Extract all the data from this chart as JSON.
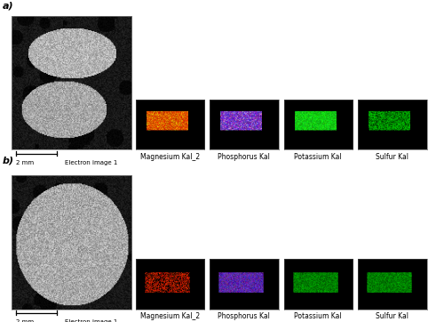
{
  "panel_a_label": "a)",
  "panel_b_label": "b)",
  "element_labels_a": [
    "Magnesium Kal_2",
    "Phosphorus Kal",
    "Potassium Kal",
    "Sulfur Kal"
  ],
  "element_labels_b": [
    "Magnesium Kal_2",
    "Phosphorus Kal",
    "Potassium Kal",
    "Sulfur Kal"
  ],
  "scale_label": "2 mm",
  "electron_label": "Electron image 1",
  "bg_color": "#ffffff",
  "label_fontsize": 5.5,
  "panel_label_fontsize": 8,
  "edx_colors_a": [
    "orange_red_bright",
    "blue_purple",
    "green_solid",
    "green_speckle"
  ],
  "edx_colors_b": [
    "red_speckle",
    "blue_purple_dim",
    "green_speckle_dim",
    "green_speckle_dim2"
  ]
}
